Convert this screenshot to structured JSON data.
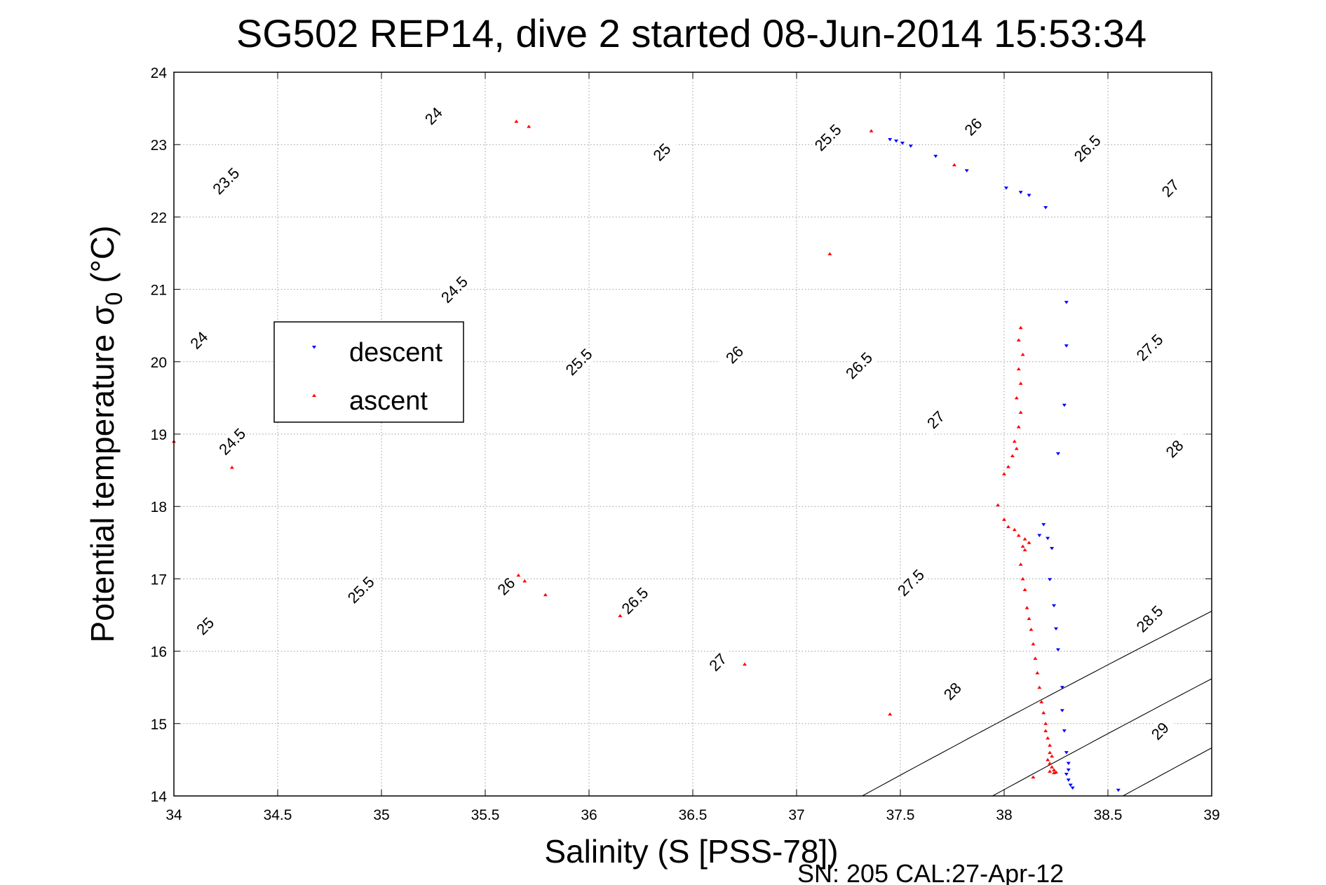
{
  "chart_data": {
    "type": "scatter",
    "title": "SG502 REP14, dive 2 started 08-Jun-2014 15:53:34",
    "xlabel": "Salinity (S [PSS-78])",
    "ylabel_main": "Potential temperature σ",
    "ylabel_sub": "0",
    "ylabel_unit": " (°C)",
    "footer": "SN: 205  CAL:27-Apr-12",
    "xlim": [
      34,
      39
    ],
    "ylim": [
      14,
      24
    ],
    "xticks": [
      "34",
      "34.5",
      "35",
      "35.5",
      "36",
      "36.5",
      "37",
      "37.5",
      "38",
      "38.5",
      "39"
    ],
    "yticks": [
      "14",
      "15",
      "16",
      "17",
      "18",
      "19",
      "20",
      "21",
      "22",
      "23",
      "24"
    ],
    "grid": true,
    "legend_position": "center-left",
    "density_contours": {
      "levels": [
        23.5,
        24,
        24.5,
        25,
        25.5,
        26,
        26.5,
        27,
        27.5,
        28,
        28.5,
        29
      ],
      "labels": [
        {
          "text": "23.5",
          "s": 34.25,
          "t": 22.5
        },
        {
          "text": "24",
          "s": 35.25,
          "t": 23.4
        },
        {
          "text": "24",
          "s": 34.12,
          "t": 20.3
        },
        {
          "text": "24.5",
          "s": 35.35,
          "t": 21.0
        },
        {
          "text": "24.5",
          "s": 34.28,
          "t": 18.9
        },
        {
          "text": "25",
          "s": 36.35,
          "t": 22.9
        },
        {
          "text": "25",
          "s": 34.15,
          "t": 16.35
        },
        {
          "text": "25.5",
          "s": 37.15,
          "t": 23.1
        },
        {
          "text": "25.5",
          "s": 35.95,
          "t": 20.0
        },
        {
          "text": "25.5",
          "s": 34.9,
          "t": 16.85
        },
        {
          "text": "26",
          "s": 37.85,
          "t": 23.25
        },
        {
          "text": "26",
          "s": 36.7,
          "t": 20.1
        },
        {
          "text": "26",
          "s": 35.6,
          "t": 16.9
        },
        {
          "text": "26.5",
          "s": 38.4,
          "t": 22.95
        },
        {
          "text": "26.5",
          "s": 37.3,
          "t": 19.95
        },
        {
          "text": "26.5",
          "s": 36.22,
          "t": 16.7
        },
        {
          "text": "27",
          "s": 38.8,
          "t": 22.4
        },
        {
          "text": "27",
          "s": 37.67,
          "t": 19.2
        },
        {
          "text": "27",
          "s": 36.62,
          "t": 15.85
        },
        {
          "text": "27.5",
          "s": 38.7,
          "t": 20.2
        },
        {
          "text": "27.5",
          "s": 37.55,
          "t": 16.95
        },
        {
          "text": "28",
          "s": 38.82,
          "t": 18.8
        },
        {
          "text": "28",
          "s": 37.75,
          "t": 15.45
        },
        {
          "text": "28.5",
          "s": 38.7,
          "t": 16.45
        },
        {
          "text": "29",
          "s": 38.75,
          "t": 14.9
        }
      ]
    },
    "series": [
      {
        "name": "descent",
        "color": "#0000ff",
        "marker": "triangle-down",
        "points": [
          [
            37.45,
            23.07
          ],
          [
            37.48,
            23.05
          ],
          [
            37.51,
            23.02
          ],
          [
            37.55,
            22.98
          ],
          [
            37.67,
            22.84
          ],
          [
            37.82,
            22.64
          ],
          [
            38.01,
            22.4
          ],
          [
            38.08,
            22.34
          ],
          [
            38.12,
            22.3
          ],
          [
            38.2,
            22.13
          ],
          [
            38.3,
            20.82
          ],
          [
            38.3,
            20.22
          ],
          [
            38.29,
            19.4
          ],
          [
            38.26,
            18.73
          ],
          [
            38.19,
            17.75
          ],
          [
            38.17,
            17.6
          ],
          [
            38.21,
            17.56
          ],
          [
            38.23,
            17.42
          ],
          [
            38.22,
            16.99
          ],
          [
            38.24,
            16.63
          ],
          [
            38.25,
            16.31
          ],
          [
            38.26,
            16.02
          ],
          [
            38.28,
            15.5
          ],
          [
            38.28,
            15.18
          ],
          [
            38.29,
            14.9
          ],
          [
            38.3,
            14.6
          ],
          [
            38.31,
            14.45
          ],
          [
            38.31,
            14.36
          ],
          [
            38.3,
            14.3
          ],
          [
            38.31,
            14.22
          ],
          [
            38.32,
            14.15
          ],
          [
            38.33,
            14.11
          ],
          [
            38.55,
            14.08
          ]
        ]
      },
      {
        "name": "ascent",
        "color": "#ff0000",
        "marker": "triangle-up",
        "points": [
          [
            35.65,
            23.32
          ],
          [
            35.71,
            23.25
          ],
          [
            37.36,
            23.19
          ],
          [
            37.76,
            22.72
          ],
          [
            37.16,
            21.49
          ],
          [
            34.0,
            18.9
          ],
          [
            34.28,
            18.54
          ],
          [
            35.66,
            17.05
          ],
          [
            35.69,
            16.97
          ],
          [
            35.79,
            16.78
          ],
          [
            36.15,
            16.49
          ],
          [
            36.75,
            15.82
          ],
          [
            37.45,
            15.13
          ],
          [
            38.08,
            20.47
          ],
          [
            38.07,
            20.3
          ],
          [
            38.09,
            20.1
          ],
          [
            38.07,
            19.9
          ],
          [
            38.08,
            19.7
          ],
          [
            38.06,
            19.5
          ],
          [
            38.08,
            19.3
          ],
          [
            38.07,
            19.1
          ],
          [
            38.05,
            18.9
          ],
          [
            38.06,
            18.8
          ],
          [
            38.04,
            18.7
          ],
          [
            38.02,
            18.55
          ],
          [
            38.0,
            18.45
          ],
          [
            37.97,
            18.02
          ],
          [
            38.0,
            17.82
          ],
          [
            38.02,
            17.72
          ],
          [
            38.05,
            17.68
          ],
          [
            38.07,
            17.6
          ],
          [
            38.1,
            17.55
          ],
          [
            38.12,
            17.5
          ],
          [
            38.09,
            17.45
          ],
          [
            38.1,
            17.4
          ],
          [
            38.08,
            17.2
          ],
          [
            38.09,
            17.0
          ],
          [
            38.1,
            16.85
          ],
          [
            38.11,
            16.6
          ],
          [
            38.12,
            16.45
          ],
          [
            38.13,
            16.3
          ],
          [
            38.14,
            16.1
          ],
          [
            38.15,
            15.9
          ],
          [
            38.16,
            15.7
          ],
          [
            38.17,
            15.5
          ],
          [
            38.18,
            15.3
          ],
          [
            38.19,
            15.15
          ],
          [
            38.2,
            15.0
          ],
          [
            38.2,
            14.9
          ],
          [
            38.21,
            14.8
          ],
          [
            38.22,
            14.7
          ],
          [
            38.22,
            14.6
          ],
          [
            38.23,
            14.55
          ],
          [
            38.21,
            14.5
          ],
          [
            38.22,
            14.45
          ],
          [
            38.23,
            14.4
          ],
          [
            38.24,
            14.36
          ],
          [
            38.22,
            14.34
          ],
          [
            38.24,
            14.32
          ],
          [
            38.14,
            14.26
          ],
          [
            38.25,
            14.33
          ]
        ]
      }
    ]
  }
}
